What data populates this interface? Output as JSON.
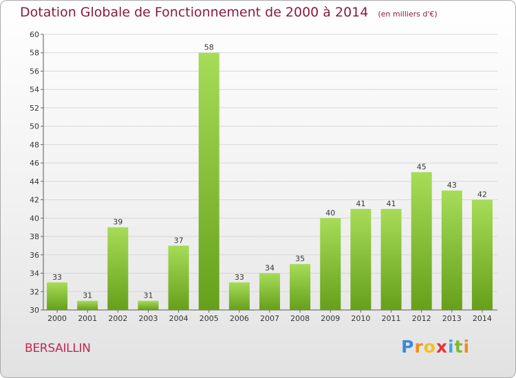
{
  "header": {
    "title": "Dotation Globale de Fonctionnement de 2000 à 2014",
    "unit": "(en milliers d'€)"
  },
  "commune": "BERSAILLIN",
  "brand": {
    "letters": [
      "P",
      "r",
      "o",
      "x",
      "i",
      "t",
      "i"
    ],
    "colors": [
      "#3a8ad8",
      "#f28c1e",
      "#f2c21e",
      "#e8323c",
      "#46a5e8",
      "#7dbb28",
      "#f28c1e"
    ]
  },
  "colors": {
    "bar_light": "#a6dc58",
    "bar_dark": "#66a01a",
    "title": "#8a1a3c",
    "commune": "#c0284f"
  },
  "chart_data": {
    "type": "bar",
    "title": "Dotation Globale de Fonctionnement de 2000 à 2014",
    "xlabel": "",
    "ylabel": "",
    "ylim": [
      30,
      60
    ],
    "ytick_step": 2,
    "grid": true,
    "categories": [
      "2000",
      "2001",
      "2002",
      "2003",
      "2004",
      "2005",
      "2006",
      "2007",
      "2008",
      "2009",
      "2010",
      "2011",
      "2012",
      "2013",
      "2014"
    ],
    "values": [
      33,
      31,
      39,
      31,
      37,
      58,
      33,
      34,
      35,
      40,
      41,
      41,
      45,
      43,
      42
    ]
  }
}
